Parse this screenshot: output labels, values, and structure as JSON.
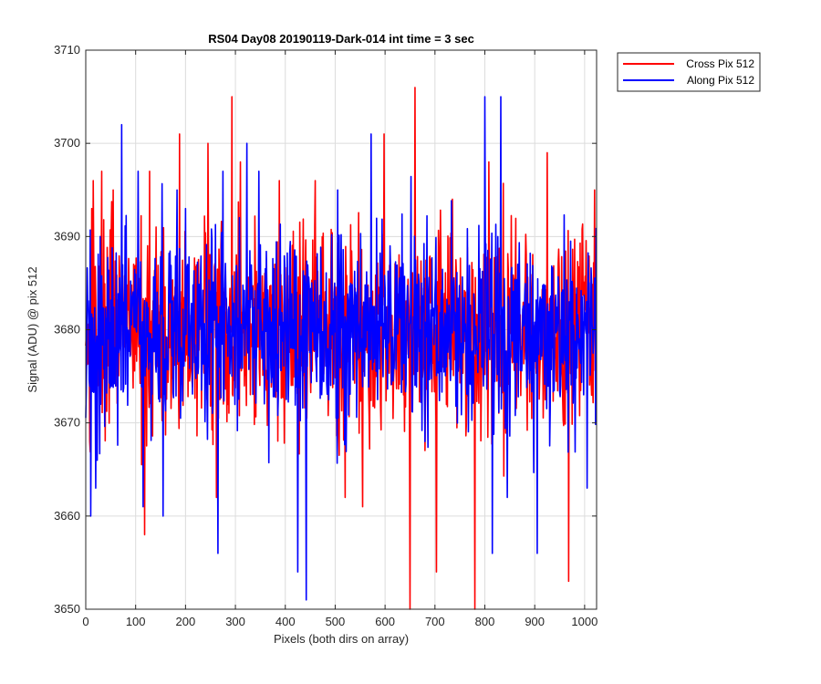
{
  "chart_data": {
    "type": "line",
    "title": "RS04 Day08 20190119-Dark-014 int time = 3 sec",
    "xlabel": "Pixels (both dirs on array)",
    "ylabel": "Signal (ADU) @ pix 512",
    "xlim": [
      0,
      1024
    ],
    "ylim": [
      3650,
      3710
    ],
    "xticks": [
      0,
      100,
      200,
      300,
      400,
      500,
      600,
      700,
      800,
      900,
      1000
    ],
    "yticks": [
      3650,
      3660,
      3670,
      3680,
      3690,
      3700,
      3710
    ],
    "grid": true,
    "legend": "outside-top-right",
    "series": [
      {
        "name": "Cross Pix 512",
        "color": "#ff0000",
        "mean": 3680,
        "spread": 5.5,
        "seed": 17,
        "extremes": [
          [
            8,
            3668
          ],
          [
            12,
            3693
          ],
          [
            15,
            3696
          ],
          [
            25,
            3674
          ],
          [
            32,
            3697
          ],
          [
            55,
            3695
          ],
          [
            118,
            3658
          ],
          [
            128,
            3697
          ],
          [
            188,
            3701
          ],
          [
            245,
            3700
          ],
          [
            262,
            3662
          ],
          [
            293,
            3705
          ],
          [
            310,
            3698
          ],
          [
            388,
            3696
          ],
          [
            460,
            3696
          ],
          [
            520,
            3662
          ],
          [
            555,
            3661
          ],
          [
            598,
            3701
          ],
          [
            650,
            3650
          ],
          [
            660,
            3706
          ],
          [
            703,
            3654
          ],
          [
            735,
            3694
          ],
          [
            780,
            3650
          ],
          [
            808,
            3698
          ],
          [
            845,
            3667
          ],
          [
            925,
            3699
          ],
          [
            968,
            3653
          ],
          [
            1020,
            3695
          ]
        ]
      },
      {
        "name": "Along Pix 512",
        "color": "#0000ff",
        "mean": 3680,
        "spread": 5.3,
        "seed": 91,
        "extremes": [
          [
            10,
            3660
          ],
          [
            20,
            3663
          ],
          [
            72,
            3702
          ],
          [
            105,
            3697
          ],
          [
            115,
            3661
          ],
          [
            155,
            3660
          ],
          [
            183,
            3695
          ],
          [
            200,
            3693
          ],
          [
            265,
            3656
          ],
          [
            275,
            3697
          ],
          [
            323,
            3700
          ],
          [
            347,
            3697
          ],
          [
            425,
            3654
          ],
          [
            442,
            3651
          ],
          [
            505,
            3695
          ],
          [
            572,
            3701
          ],
          [
            610,
            3689
          ],
          [
            680,
            3668
          ],
          [
            800,
            3705
          ],
          [
            815,
            3656
          ],
          [
            832,
            3705
          ],
          [
            845,
            3662
          ],
          [
            905,
            3656
          ],
          [
            1005,
            3663
          ]
        ]
      }
    ]
  }
}
